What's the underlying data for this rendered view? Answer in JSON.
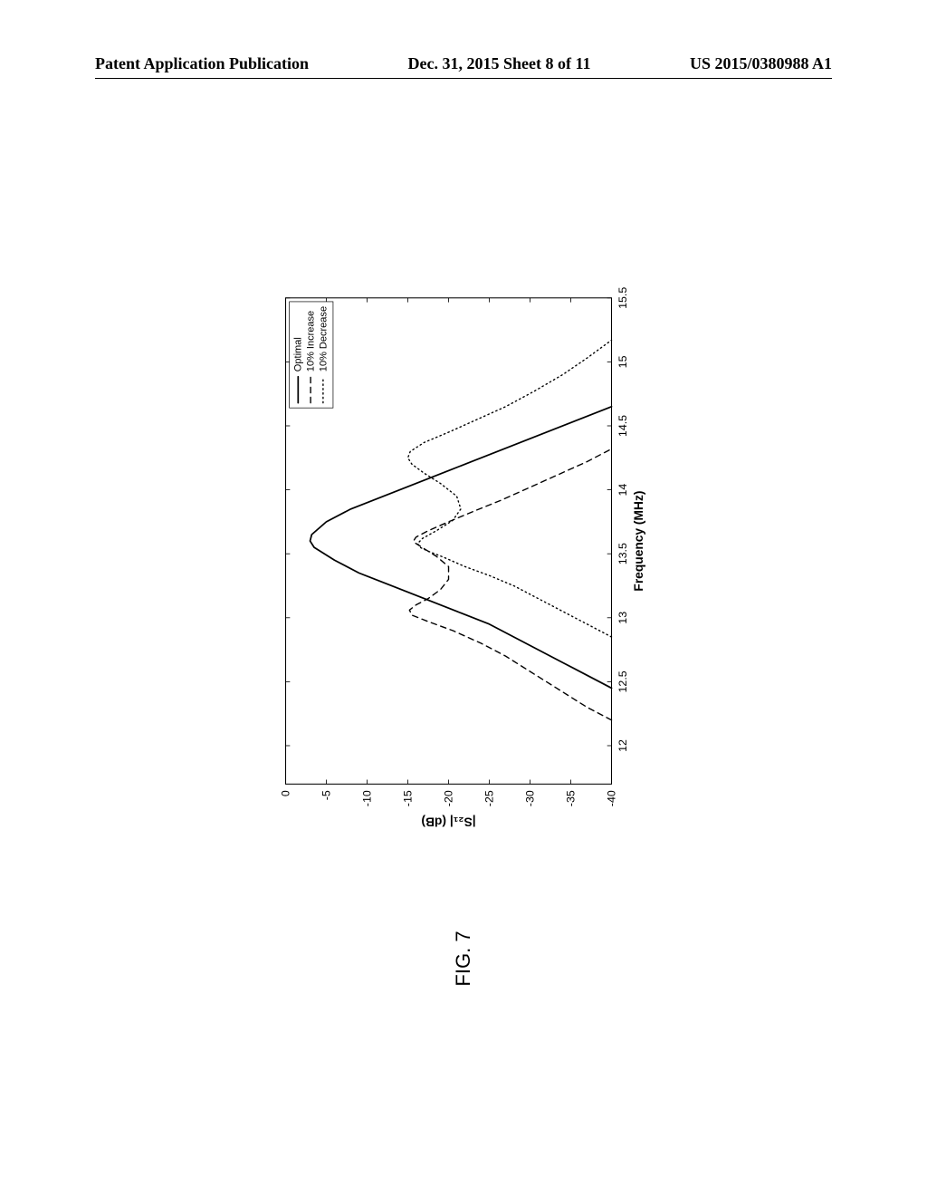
{
  "header": {
    "left": "Patent Application Publication",
    "middle": "Dec. 31, 2015  Sheet 8 of 11",
    "right": "US 2015/0380988 A1"
  },
  "figure_caption": "FIG. 7",
  "chart": {
    "type": "line",
    "xlabel": "Frequency (MHz)",
    "ylabel": "|S₂₁| (dB)",
    "xlim": [
      11.7,
      15.5
    ],
    "ylim": [
      -40,
      0
    ],
    "xticks": [
      12,
      12.5,
      13,
      13.5,
      14,
      14.5,
      15,
      15.5
    ],
    "yticks": [
      0,
      -5,
      -10,
      -15,
      -20,
      -25,
      -30,
      -35,
      -40
    ],
    "label_fontsize": 14,
    "tick_fontsize": 14,
    "background_color": "#ffffff",
    "axis_color": "#000000",
    "tick_color": "#000000",
    "grid_on": false,
    "legend": {
      "position": "top-right",
      "border_color": "#000000",
      "background_color": "#ffffff",
      "items": [
        {
          "label": "Optimal",
          "style": "solid",
          "key": "optimal"
        },
        {
          "label": "10% Increase",
          "style": "dashed",
          "key": "increase"
        },
        {
          "label": "10% Decrease",
          "style": "dotted",
          "key": "decrease"
        }
      ]
    },
    "line_color": "#000000",
    "line_width_solid": 2.5,
    "line_width_dashed": 2.0,
    "line_width_dotted": 2.0,
    "series": {
      "optimal": [
        [
          12.45,
          -40
        ],
        [
          12.55,
          -37
        ],
        [
          12.65,
          -34
        ],
        [
          12.75,
          -31
        ],
        [
          12.85,
          -28
        ],
        [
          12.95,
          -25
        ],
        [
          13.05,
          -21
        ],
        [
          13.15,
          -17
        ],
        [
          13.25,
          -13
        ],
        [
          13.35,
          -9
        ],
        [
          13.45,
          -6
        ],
        [
          13.55,
          -3.5
        ],
        [
          13.6,
          -3.0
        ],
        [
          13.65,
          -3.2
        ],
        [
          13.75,
          -5
        ],
        [
          13.85,
          -8
        ],
        [
          13.95,
          -12
        ],
        [
          14.05,
          -16
        ],
        [
          14.15,
          -20
        ],
        [
          14.25,
          -24
        ],
        [
          14.35,
          -28
        ],
        [
          14.45,
          -32
        ],
        [
          14.55,
          -36
        ],
        [
          14.65,
          -40
        ]
      ],
      "increase": [
        [
          12.2,
          -40
        ],
        [
          12.3,
          -37
        ],
        [
          12.4,
          -34.5
        ],
        [
          12.5,
          -32
        ],
        [
          12.6,
          -29.5
        ],
        [
          12.7,
          -27
        ],
        [
          12.8,
          -24
        ],
        [
          12.9,
          -20.5
        ],
        [
          12.97,
          -17.5
        ],
        [
          13.02,
          -15.5
        ],
        [
          13.06,
          -15.2
        ],
        [
          13.1,
          -16
        ],
        [
          13.15,
          -17.5
        ],
        [
          13.22,
          -19
        ],
        [
          13.3,
          -20
        ],
        [
          13.4,
          -20
        ],
        [
          13.48,
          -18.5
        ],
        [
          13.54,
          -17
        ],
        [
          13.58,
          -16
        ],
        [
          13.6,
          -15.7
        ],
        [
          13.63,
          -16
        ],
        [
          13.68,
          -17.5
        ],
        [
          13.75,
          -20
        ],
        [
          13.83,
          -23
        ],
        [
          13.92,
          -26.5
        ],
        [
          14.02,
          -30
        ],
        [
          14.12,
          -33.5
        ],
        [
          14.22,
          -37
        ],
        [
          14.32,
          -40
        ]
      ],
      "decrease": [
        [
          12.85,
          -40
        ],
        [
          12.95,
          -37
        ],
        [
          13.05,
          -34
        ],
        [
          13.15,
          -31
        ],
        [
          13.25,
          -28
        ],
        [
          13.33,
          -25
        ],
        [
          13.4,
          -22
        ],
        [
          13.47,
          -19.5
        ],
        [
          13.52,
          -17.5
        ],
        [
          13.55,
          -16.5
        ],
        [
          13.58,
          -16.2
        ],
        [
          13.62,
          -16.8
        ],
        [
          13.68,
          -18.5
        ],
        [
          13.76,
          -20.5
        ],
        [
          13.85,
          -21.5
        ],
        [
          13.95,
          -21
        ],
        [
          14.05,
          -19
        ],
        [
          14.13,
          -17
        ],
        [
          14.2,
          -15.5
        ],
        [
          14.25,
          -15
        ],
        [
          14.3,
          -15.3
        ],
        [
          14.37,
          -17
        ],
        [
          14.45,
          -20
        ],
        [
          14.55,
          -23.5
        ],
        [
          14.65,
          -27
        ],
        [
          14.77,
          -30.5
        ],
        [
          14.9,
          -34
        ],
        [
          15.03,
          -37
        ],
        [
          15.17,
          -40
        ]
      ]
    }
  }
}
